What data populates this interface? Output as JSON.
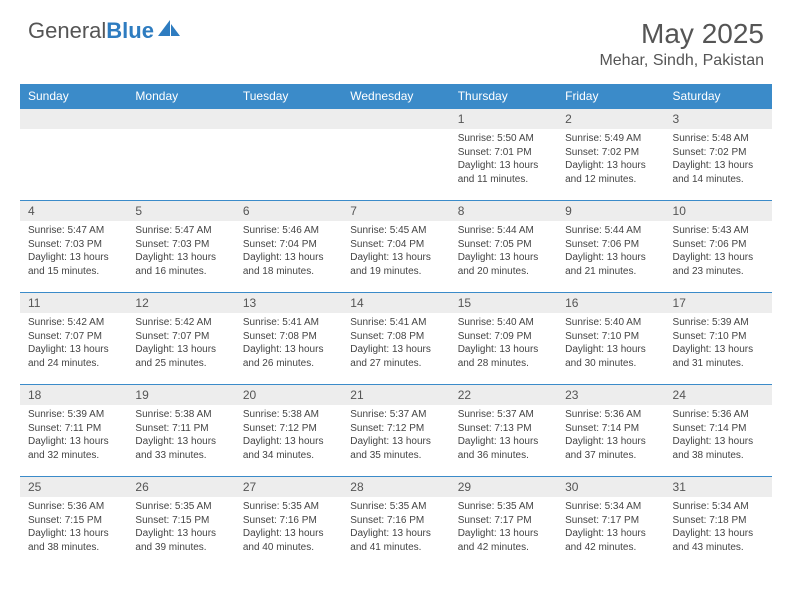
{
  "logo": {
    "word1": "General",
    "word2": "Blue"
  },
  "title": "May 2025",
  "location": "Mehar, Sindh, Pakistan",
  "colors": {
    "header_bg": "#3b8bc9",
    "header_text": "#ffffff",
    "daynum_bg": "#ededed",
    "row_border": "#3b8bc9",
    "logo_blue": "#2e7cc0",
    "text": "#444444"
  },
  "weekdays": [
    "Sunday",
    "Monday",
    "Tuesday",
    "Wednesday",
    "Thursday",
    "Friday",
    "Saturday"
  ],
  "layout": {
    "columns": 7,
    "rows": 5,
    "first_day_column_index": 4
  },
  "days": [
    {
      "n": 1,
      "sunrise": "5:50 AM",
      "sunset": "7:01 PM",
      "daylight": "13 hours and 11 minutes."
    },
    {
      "n": 2,
      "sunrise": "5:49 AM",
      "sunset": "7:02 PM",
      "daylight": "13 hours and 12 minutes."
    },
    {
      "n": 3,
      "sunrise": "5:48 AM",
      "sunset": "7:02 PM",
      "daylight": "13 hours and 14 minutes."
    },
    {
      "n": 4,
      "sunrise": "5:47 AM",
      "sunset": "7:03 PM",
      "daylight": "13 hours and 15 minutes."
    },
    {
      "n": 5,
      "sunrise": "5:47 AM",
      "sunset": "7:03 PM",
      "daylight": "13 hours and 16 minutes."
    },
    {
      "n": 6,
      "sunrise": "5:46 AM",
      "sunset": "7:04 PM",
      "daylight": "13 hours and 18 minutes."
    },
    {
      "n": 7,
      "sunrise": "5:45 AM",
      "sunset": "7:04 PM",
      "daylight": "13 hours and 19 minutes."
    },
    {
      "n": 8,
      "sunrise": "5:44 AM",
      "sunset": "7:05 PM",
      "daylight": "13 hours and 20 minutes."
    },
    {
      "n": 9,
      "sunrise": "5:44 AM",
      "sunset": "7:06 PM",
      "daylight": "13 hours and 21 minutes."
    },
    {
      "n": 10,
      "sunrise": "5:43 AM",
      "sunset": "7:06 PM",
      "daylight": "13 hours and 23 minutes."
    },
    {
      "n": 11,
      "sunrise": "5:42 AM",
      "sunset": "7:07 PM",
      "daylight": "13 hours and 24 minutes."
    },
    {
      "n": 12,
      "sunrise": "5:42 AM",
      "sunset": "7:07 PM",
      "daylight": "13 hours and 25 minutes."
    },
    {
      "n": 13,
      "sunrise": "5:41 AM",
      "sunset": "7:08 PM",
      "daylight": "13 hours and 26 minutes."
    },
    {
      "n": 14,
      "sunrise": "5:41 AM",
      "sunset": "7:08 PM",
      "daylight": "13 hours and 27 minutes."
    },
    {
      "n": 15,
      "sunrise": "5:40 AM",
      "sunset": "7:09 PM",
      "daylight": "13 hours and 28 minutes."
    },
    {
      "n": 16,
      "sunrise": "5:40 AM",
      "sunset": "7:10 PM",
      "daylight": "13 hours and 30 minutes."
    },
    {
      "n": 17,
      "sunrise": "5:39 AM",
      "sunset": "7:10 PM",
      "daylight": "13 hours and 31 minutes."
    },
    {
      "n": 18,
      "sunrise": "5:39 AM",
      "sunset": "7:11 PM",
      "daylight": "13 hours and 32 minutes."
    },
    {
      "n": 19,
      "sunrise": "5:38 AM",
      "sunset": "7:11 PM",
      "daylight": "13 hours and 33 minutes."
    },
    {
      "n": 20,
      "sunrise": "5:38 AM",
      "sunset": "7:12 PM",
      "daylight": "13 hours and 34 minutes."
    },
    {
      "n": 21,
      "sunrise": "5:37 AM",
      "sunset": "7:12 PM",
      "daylight": "13 hours and 35 minutes."
    },
    {
      "n": 22,
      "sunrise": "5:37 AM",
      "sunset": "7:13 PM",
      "daylight": "13 hours and 36 minutes."
    },
    {
      "n": 23,
      "sunrise": "5:36 AM",
      "sunset": "7:14 PM",
      "daylight": "13 hours and 37 minutes."
    },
    {
      "n": 24,
      "sunrise": "5:36 AM",
      "sunset": "7:14 PM",
      "daylight": "13 hours and 38 minutes."
    },
    {
      "n": 25,
      "sunrise": "5:36 AM",
      "sunset": "7:15 PM",
      "daylight": "13 hours and 38 minutes."
    },
    {
      "n": 26,
      "sunrise": "5:35 AM",
      "sunset": "7:15 PM",
      "daylight": "13 hours and 39 minutes."
    },
    {
      "n": 27,
      "sunrise": "5:35 AM",
      "sunset": "7:16 PM",
      "daylight": "13 hours and 40 minutes."
    },
    {
      "n": 28,
      "sunrise": "5:35 AM",
      "sunset": "7:16 PM",
      "daylight": "13 hours and 41 minutes."
    },
    {
      "n": 29,
      "sunrise": "5:35 AM",
      "sunset": "7:17 PM",
      "daylight": "13 hours and 42 minutes."
    },
    {
      "n": 30,
      "sunrise": "5:34 AM",
      "sunset": "7:17 PM",
      "daylight": "13 hours and 42 minutes."
    },
    {
      "n": 31,
      "sunrise": "5:34 AM",
      "sunset": "7:18 PM",
      "daylight": "13 hours and 43 minutes."
    }
  ],
  "labels": {
    "sunrise": "Sunrise:",
    "sunset": "Sunset:",
    "daylight": "Daylight:"
  }
}
